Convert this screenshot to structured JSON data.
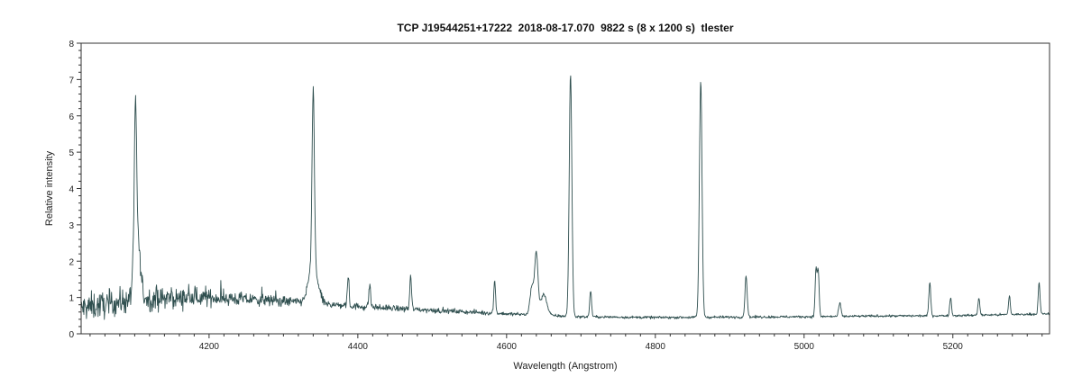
{
  "chart_data": {
    "type": "line",
    "title": "TCP J19544251+17222  2018-08-17.070  9822 s (8 x 1200 s)  tlester",
    "xlabel": "Wavelength (Angstrom)",
    "ylabel": "Relative intensity",
    "xlim": [
      4028,
      5330
    ],
    "ylim": [
      0,
      8
    ],
    "x_ticks": [
      4200,
      4400,
      4600,
      4800,
      5000,
      5200
    ],
    "y_ticks": [
      0,
      1,
      2,
      3,
      4,
      5,
      6,
      7,
      8
    ],
    "grid": false,
    "line_color": "#2f4f4f",
    "continuum": [
      [
        4028,
        0.7
      ],
      [
        4100,
        0.95
      ],
      [
        4200,
        1.0
      ],
      [
        4300,
        0.9
      ],
      [
        4400,
        0.75
      ],
      [
        4500,
        0.65
      ],
      [
        4600,
        0.55
      ],
      [
        4700,
        0.47
      ],
      [
        4800,
        0.45
      ],
      [
        4900,
        0.46
      ],
      [
        5000,
        0.47
      ],
      [
        5100,
        0.49
      ],
      [
        5200,
        0.5
      ],
      [
        5330,
        0.55
      ]
    ],
    "noise_regions": [
      [
        4028,
        0.38
      ],
      [
        4100,
        0.32
      ],
      [
        4150,
        0.25
      ],
      [
        4250,
        0.17
      ],
      [
        4350,
        0.1
      ],
      [
        4450,
        0.08
      ],
      [
        4600,
        0.05
      ],
      [
        4700,
        0.035
      ],
      [
        5330,
        0.03
      ]
    ],
    "peaks": [
      {
        "x": 4101,
        "y": 4.65,
        "width": 1.5
      },
      {
        "x": 4103,
        "y": 2.8,
        "width": 4
      },
      {
        "x": 4340,
        "y": 5.6,
        "width": 1.6
      },
      {
        "x": 4340,
        "y": 1.9,
        "width": 6
      },
      {
        "x": 4387,
        "y": 1.55,
        "width": 1.2
      },
      {
        "x": 4416,
        "y": 1.35,
        "width": 1.2
      },
      {
        "x": 4471,
        "y": 1.6,
        "width": 1.2
      },
      {
        "x": 4584,
        "y": 1.45,
        "width": 1.2
      },
      {
        "x": 4634,
        "y": 1.3,
        "width": 2.5
      },
      {
        "x": 4640,
        "y": 2.2,
        "width": 2.2
      },
      {
        "x": 4650,
        "y": 1.1,
        "width": 4
      },
      {
        "x": 4686,
        "y": 7.15,
        "width": 1.8
      },
      {
        "x": 4713,
        "y": 1.2,
        "width": 1.2
      },
      {
        "x": 4861,
        "y": 6.95,
        "width": 1.8
      },
      {
        "x": 4922,
        "y": 1.6,
        "width": 1.5
      },
      {
        "x": 5016,
        "y": 1.8,
        "width": 1.2
      },
      {
        "x": 5019,
        "y": 1.75,
        "width": 1.2
      },
      {
        "x": 5048,
        "y": 0.85,
        "width": 1.5
      },
      {
        "x": 5169,
        "y": 1.4,
        "width": 1.3
      },
      {
        "x": 5197,
        "y": 1.0,
        "width": 1.2
      },
      {
        "x": 5235,
        "y": 1.0,
        "width": 1.2
      },
      {
        "x": 5276,
        "y": 1.05,
        "width": 1.2
      },
      {
        "x": 5316,
        "y": 1.4,
        "width": 1.2
      }
    ]
  }
}
